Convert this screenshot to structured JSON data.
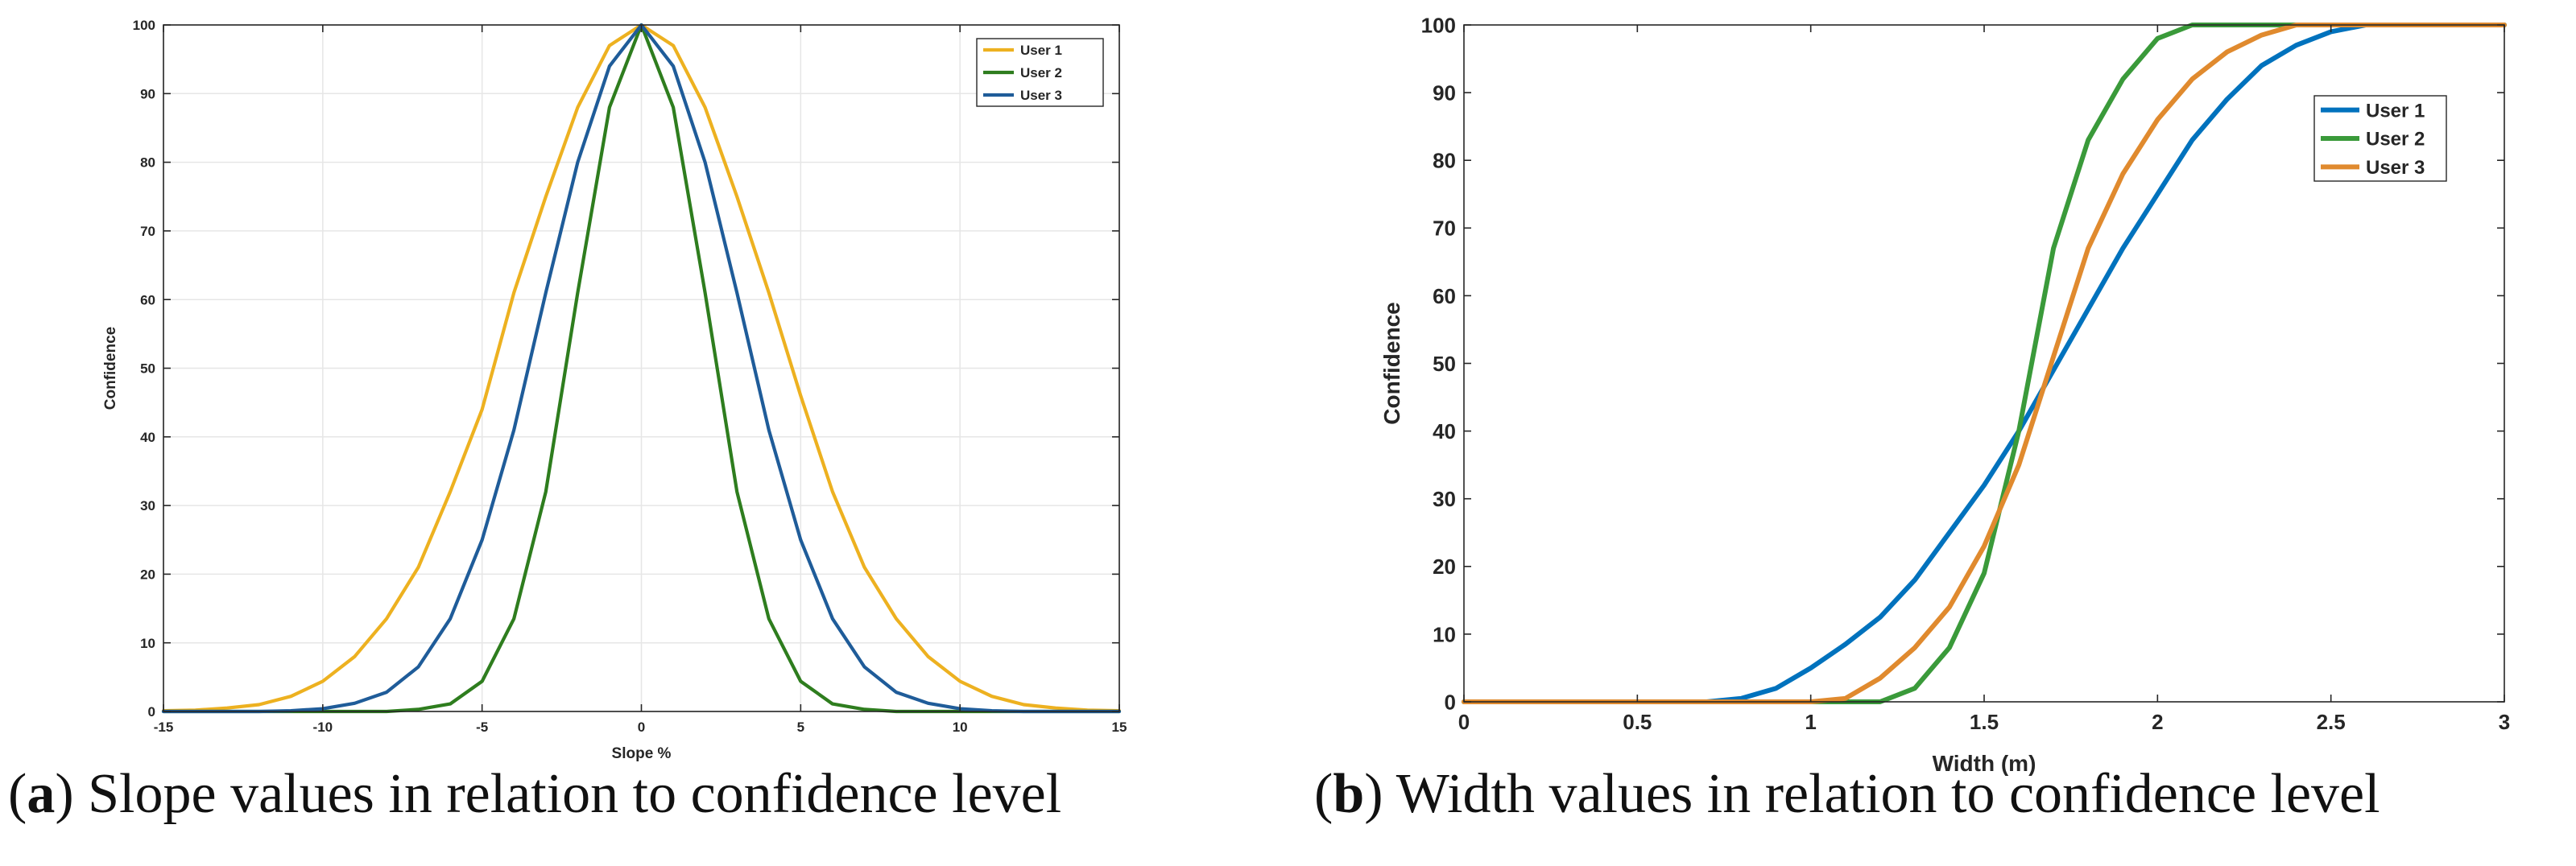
{
  "chart_data": [
    {
      "type": "line",
      "panel": "a",
      "title": "",
      "xlabel": "Slope %",
      "ylabel": "Confidence",
      "xlim": [
        -15,
        15
      ],
      "ylim": [
        0,
        100
      ],
      "xticks": [
        -15,
        -10,
        -5,
        0,
        5,
        10,
        15
      ],
      "yticks": [
        0,
        10,
        20,
        30,
        40,
        50,
        60,
        70,
        80,
        90,
        100
      ],
      "grid": true,
      "legend_position": "top-right",
      "x": [
        -15,
        -14,
        -13,
        -12,
        -11,
        -10,
        -9,
        -8,
        -7,
        -6,
        -5,
        -4,
        -3,
        -2,
        -1,
        0,
        1,
        2,
        3,
        4,
        5,
        6,
        7,
        8,
        9,
        10,
        11,
        12,
        13,
        14,
        15
      ],
      "series": [
        {
          "name": "User 1",
          "color": "#EDB120",
          "values": [
            0.1,
            0.2,
            0.5,
            1,
            2.2,
            4.4,
            8,
            13.5,
            21,
            32,
            44,
            61,
            75,
            88,
            97,
            100,
            97,
            88,
            75,
            61,
            46,
            32,
            21,
            13.5,
            8,
            4.4,
            2.2,
            1,
            0.5,
            0.2,
            0.1
          ]
        },
        {
          "name": "User 2",
          "color": "#2E7D1E",
          "values": [
            0,
            0,
            0,
            0,
            0,
            0,
            0,
            0,
            0.3,
            1.1,
            4.4,
            13.5,
            32,
            61,
            88,
            100,
            88,
            61,
            32,
            13.5,
            4.4,
            1.1,
            0.3,
            0,
            0,
            0,
            0,
            0,
            0,
            0,
            0
          ]
        },
        {
          "name": "User 3",
          "color": "#1F5C99",
          "values": [
            0,
            0,
            0,
            0,
            0.1,
            0.4,
            1.2,
            2.8,
            6.5,
            13.5,
            25,
            41,
            61,
            80,
            94,
            100,
            94,
            80,
            61,
            41,
            25,
            13.5,
            6.5,
            2.8,
            1.2,
            0.4,
            0.1,
            0,
            0,
            0,
            0
          ]
        }
      ]
    },
    {
      "type": "line",
      "panel": "b",
      "title": "",
      "xlabel": "Width (m)",
      "ylabel": "Confidence",
      "xlim": [
        0,
        3
      ],
      "ylim": [
        0,
        100
      ],
      "xticks": [
        0,
        0.5,
        1,
        1.5,
        2,
        2.5,
        3
      ],
      "yticks": [
        0,
        10,
        20,
        30,
        40,
        50,
        60,
        70,
        80,
        90,
        100
      ],
      "grid": false,
      "legend_position": "top-right",
      "x": [
        0,
        0.1,
        0.2,
        0.3,
        0.4,
        0.5,
        0.6,
        0.7,
        0.8,
        0.9,
        1.0,
        1.1,
        1.2,
        1.3,
        1.4,
        1.5,
        1.6,
        1.7,
        1.8,
        1.9,
        2.0,
        2.1,
        2.2,
        2.3,
        2.4,
        2.5,
        2.6,
        2.7,
        2.8,
        2.9,
        3.0
      ],
      "series": [
        {
          "name": "User 1",
          "color": "#0072BD",
          "values": [
            0,
            0,
            0,
            0,
            0,
            0,
            0,
            0,
            0.5,
            2,
            5,
            8.5,
            12.5,
            18,
            25,
            32,
            40,
            49,
            58,
            67,
            75,
            83,
            89,
            94,
            97,
            99,
            100,
            100,
            100,
            100,
            100
          ]
        },
        {
          "name": "User 2",
          "color": "#3A9A3A",
          "values": [
            0,
            0,
            0,
            0,
            0,
            0,
            0,
            0,
            0,
            0,
            0,
            0,
            0,
            2,
            8,
            19,
            40,
            67,
            83,
            92,
            98,
            100,
            100,
            100,
            100,
            100,
            100,
            100,
            100,
            100,
            100
          ]
        },
        {
          "name": "User 3",
          "color": "#E08A2E",
          "values": [
            0,
            0,
            0,
            0,
            0,
            0,
            0,
            0,
            0,
            0,
            0,
            0.5,
            3.5,
            8,
            14,
            23,
            35,
            51,
            67,
            78,
            86,
            92,
            96,
            98.5,
            100,
            100,
            100,
            100,
            100,
            100,
            100
          ]
        }
      ]
    }
  ],
  "captions": {
    "a_label": "a",
    "a_text": ") Slope values in relation to confidence level",
    "b_label": "b",
    "b_text": ") Width values in relation to confidence level"
  }
}
